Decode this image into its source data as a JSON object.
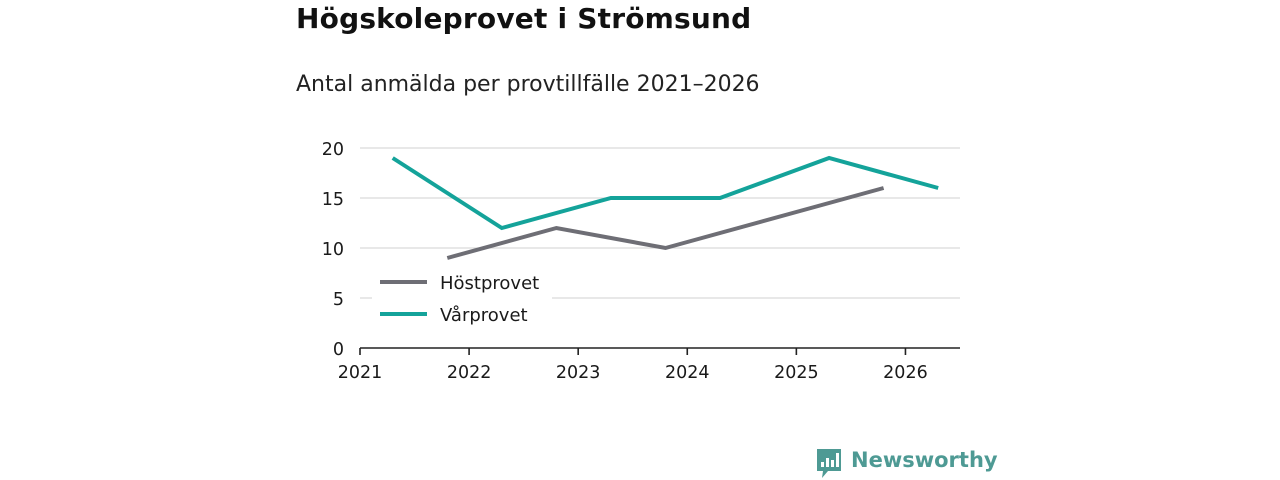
{
  "title": "Högskoleprovet i Strömsund",
  "subtitle": "Antal anmälda per provtillfälle 2021–2026",
  "brand": {
    "name": "Newsworthy",
    "icon": "newsworthy-logo-icon",
    "color": "#4e9a94"
  },
  "chart_data": {
    "type": "line",
    "title": "Högskoleprovet i Strömsund",
    "subtitle": "Antal anmälda per provtillfälle 2021–2026",
    "xlabel": "",
    "ylabel": "",
    "ylim": [
      0,
      20
    ],
    "xlim": [
      2021,
      2026.5
    ],
    "yticks": [
      0,
      5,
      10,
      15,
      20
    ],
    "xticks": [
      2021,
      2022,
      2023,
      2024,
      2025,
      2026
    ],
    "xtick_labels": [
      "2021",
      "2022",
      "2023",
      "2024",
      "2025",
      "2026"
    ],
    "grid": "horizontal",
    "legend_position": "lower-left",
    "series": [
      {
        "name": "Höstprovet",
        "color": "#6e6e75",
        "x": [
          2021.8,
          2022.8,
          2023.8,
          2025.8
        ],
        "values": [
          9,
          12,
          10,
          16
        ]
      },
      {
        "name": "Vårprovet",
        "color": "#14a39a",
        "x": [
          2021.3,
          2022.3,
          2023.3,
          2024.3,
          2025.3,
          2026.3
        ],
        "values": [
          19,
          12,
          15,
          15,
          19,
          16
        ]
      }
    ]
  }
}
